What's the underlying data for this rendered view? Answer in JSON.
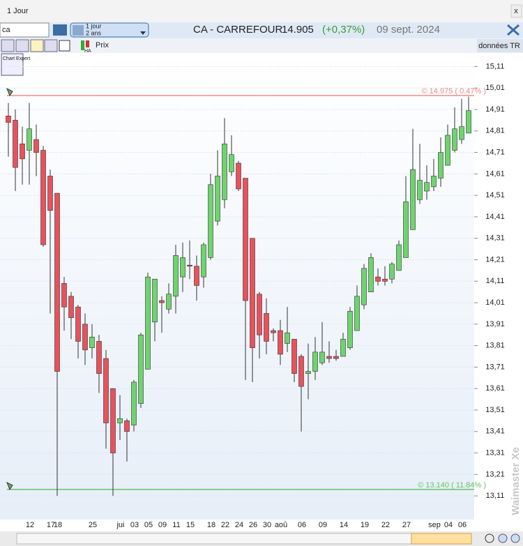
{
  "window": {
    "title": "1 Jour",
    "close": "x"
  },
  "toolbar": {
    "search": "ca",
    "period_line1": "1 jour",
    "period_line2": "2 ans",
    "instrument": "CA - CARREFOUR",
    "price": "14.905",
    "change": "(+0,37%)",
    "date": "09 sept. 2024"
  },
  "toolbar2": {
    "chart_expert": "Chart Expert",
    "ha": "HA",
    "price_label": "Prix",
    "data_label": "données TR"
  },
  "watermark": "Waimaster Xe",
  "chart_data": {
    "type": "candlestick",
    "up_color": "#6fd36f",
    "down_color": "#e8525c",
    "grid": true,
    "categories": [
      null,
      null,
      null,
      "12",
      null,
      null,
      "17",
      "18",
      null,
      null,
      null,
      null,
      "25",
      null,
      null,
      null,
      "jui",
      null,
      "03",
      null,
      "05",
      null,
      "09",
      null,
      "11",
      null,
      "15",
      null,
      null,
      "18",
      null,
      "22",
      null,
      "24",
      null,
      "26",
      null,
      "30",
      null,
      "aoû",
      null,
      null,
      "06",
      null,
      null,
      "09",
      null,
      null,
      "14",
      null,
      null,
      "19",
      null,
      null,
      "22",
      null,
      null,
      "27",
      null,
      null,
      null,
      "sep",
      null,
      "04",
      null,
      "06",
      null
    ],
    "open": [
      14.88,
      14.86,
      14.75,
      14.72,
      14.77,
      14.72,
      14.6,
      14.52,
      14.1,
      14.04,
      13.99,
      13.91,
      13.8,
      13.83,
      13.75,
      13.61,
      13.45,
      13.46,
      13.44,
      13.54,
      13.7,
      13.92,
      14.02,
      13.98,
      14.04,
      14.13,
      14.185,
      14.18,
      14.13,
      14.22,
      14.39,
      14.49,
      14.62,
      14.66,
      14.59,
      14.31,
      14.05,
      13.96,
      13.88,
      13.88,
      13.82,
      13.84,
      13.76,
      13.68,
      13.69,
      13.73,
      13.76,
      13.76,
      13.76,
      13.8,
      13.88,
      14.0,
      14.06,
      14.13,
      14.12,
      14.12,
      14.16,
      14.22,
      14.35,
      14.49,
      14.53,
      14.55,
      14.59,
      14.65,
      14.72,
      14.77,
      14.8
    ],
    "high": [
      14.94,
      14.91,
      14.83,
      14.94,
      14.84,
      14.74,
      14.63,
      14.52,
      14.13,
      14.06,
      14.0,
      13.96,
      13.91,
      13.86,
      13.79,
      13.61,
      13.58,
      13.47,
      13.65,
      13.87,
      14.15,
      14.12,
      14.04,
      14.1,
      14.28,
      14.29,
      14.3,
      14.23,
      14.29,
      14.61,
      14.72,
      14.87,
      14.79,
      14.67,
      14.59,
      14.31,
      14.06,
      14.03,
      13.89,
      13.93,
      13.99,
      13.84,
      13.77,
      13.82,
      13.85,
      13.92,
      13.83,
      13.79,
      13.87,
      13.99,
      14.09,
      14.19,
      14.24,
      14.17,
      14.18,
      14.2,
      14.3,
      14.6,
      14.82,
      14.75,
      14.65,
      14.68,
      14.78,
      14.84,
      14.92,
      14.96,
      14.97
    ],
    "low": [
      14.69,
      14.53,
      14.56,
      14.56,
      14.6,
      14.27,
      13.96,
      13.11,
      13.88,
      13.84,
      13.75,
      13.72,
      13.75,
      13.59,
      13.33,
      13.11,
      13.37,
      13.27,
      13.41,
      13.52,
      13.7,
      13.83,
      13.87,
      13.96,
      13.96,
      14.06,
      14.12,
      14.02,
      14.08,
      14.21,
      14.37,
      14.45,
      14.6,
      14.53,
      13.65,
      13.64,
      13.75,
      13.77,
      13.83,
      13.72,
      13.78,
      13.64,
      13.41,
      13.56,
      13.65,
      13.72,
      13.73,
      13.74,
      13.76,
      13.79,
      13.88,
      13.98,
      14.06,
      14.09,
      14.09,
      14.1,
      14.16,
      14.22,
      14.35,
      14.47,
      14.49,
      14.53,
      14.55,
      14.65,
      14.71,
      14.75,
      14.8
    ],
    "close": [
      14.85,
      14.64,
      14.68,
      14.82,
      14.71,
      14.28,
      14.44,
      13.69,
      13.99,
      13.94,
      13.83,
      13.79,
      13.85,
      13.68,
      13.45,
      13.31,
      13.47,
      13.41,
      13.64,
      13.86,
      14.13,
      14.12,
      14.01,
      14.05,
      14.23,
      14.22,
      14.18,
      14.09,
      14.28,
      14.56,
      14.6,
      14.75,
      14.7,
      14.54,
      14.02,
      13.8,
      13.86,
      13.83,
      13.87,
      13.77,
      13.87,
      13.68,
      13.62,
      13.69,
      13.78,
      13.78,
      13.75,
      13.75,
      13.84,
      13.97,
      14.04,
      14.17,
      14.22,
      14.11,
      14.11,
      14.19,
      14.28,
      14.48,
      14.63,
      14.58,
      14.57,
      14.6,
      14.71,
      14.79,
      14.82,
      14.83,
      14.905
    ],
    "ylim": [
      13.0,
      15.17
    ],
    "yticks": [
      {
        "value": 15.11,
        "label": "15,11"
      },
      {
        "value": 15.01,
        "label": "15,01"
      },
      {
        "value": 14.91,
        "label": "14,91"
      },
      {
        "value": 14.81,
        "label": "14,81"
      },
      {
        "value": 14.71,
        "label": "14,71"
      },
      {
        "value": 14.61,
        "label": "14,61"
      },
      {
        "value": 14.51,
        "label": "14,51"
      },
      {
        "value": 14.41,
        "label": "14,41"
      },
      {
        "value": 14.31,
        "label": "14,31"
      },
      {
        "value": 14.21,
        "label": "14,21"
      },
      {
        "value": 14.11,
        "label": "14,11"
      },
      {
        "value": 14.01,
        "label": "14,01"
      },
      {
        "value": 13.91,
        "label": "13,91"
      },
      {
        "value": 13.81,
        "label": "13,81"
      },
      {
        "value": 13.71,
        "label": "13,71"
      },
      {
        "value": 13.61,
        "label": "13,61"
      },
      {
        "value": 13.51,
        "label": "13,51"
      },
      {
        "value": 13.41,
        "label": "13,41"
      },
      {
        "value": 13.31,
        "label": "13,31"
      },
      {
        "value": 13.21,
        "label": "13,21"
      },
      {
        "value": 13.11,
        "label": "13,11"
      }
    ],
    "lines": [
      {
        "value": 14.975,
        "label": "© 14.975 ( 0.47% )",
        "color": "#f08a8a"
      },
      {
        "value": 13.14,
        "label": "© 13.140 ( 11.84% )",
        "color": "#62c462"
      }
    ]
  }
}
